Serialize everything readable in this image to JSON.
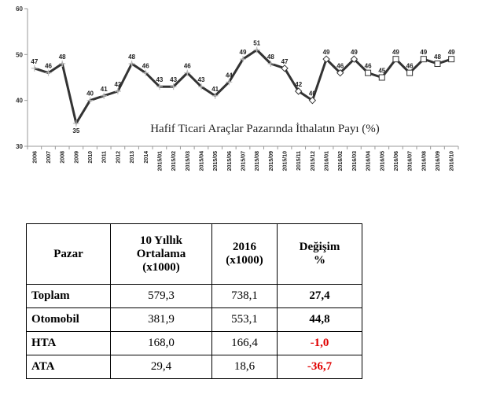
{
  "chart_data": {
    "type": "line",
    "title": "Hafif Ticari Araçlar Pazarında İthalatın Payı (%)",
    "xlabel": "",
    "ylabel": "",
    "ylim": [
      30,
      60
    ],
    "yticks": [
      30,
      40,
      50,
      60
    ],
    "grid": false,
    "categories": [
      "2006",
      "2007",
      "2008",
      "2009",
      "2010",
      "2011",
      "2012",
      "2013",
      "2014",
      "2015/01",
      "2015/02",
      "2015/03",
      "2015/04",
      "2015/05",
      "2015/06",
      "2015/07",
      "2015/08",
      "2015/09",
      "2015/10",
      "2015/11",
      "2015/12",
      "2016/01",
      "2016/02",
      "2016/03",
      "2016/04",
      "2016/05",
      "2016/06",
      "2016/07",
      "2016/08",
      "2016/09",
      "2016/10"
    ],
    "values": [
      47,
      46,
      48,
      35,
      40,
      41,
      42,
      48,
      46,
      43,
      43,
      46,
      43,
      41,
      44,
      49,
      51,
      48,
      47,
      42,
      40,
      49,
      46,
      49,
      46,
      45,
      49,
      46,
      49,
      48,
      49
    ],
    "labels": [
      "47",
      "46",
      "48",
      "35",
      "40",
      "41",
      "42",
      "48",
      "46",
      "43",
      "43",
      "46",
      "43",
      "41",
      "44",
      "49",
      "51",
      "48",
      "47",
      "42",
      "40",
      "49",
      "46",
      "49",
      "46",
      "45",
      "49",
      "46",
      "49",
      "48",
      "49"
    ],
    "series_color": "#333333"
  },
  "table": {
    "headers": [
      [
        "Pazar"
      ],
      [
        "10 Yıllık",
        "Ortalama",
        "(x1000)"
      ],
      [
        "2016",
        "(x1000)"
      ],
      [
        "Değişim",
        "%"
      ]
    ],
    "rows": [
      {
        "name": "Toplam",
        "avg": "579,3",
        "y2016": "738,1",
        "change": "27,4",
        "change_color": "#000000"
      },
      {
        "name": "Otomobil",
        "avg": "381,9",
        "y2016": "553,1",
        "change": "44,8",
        "change_color": "#000000"
      },
      {
        "name": "HTA",
        "avg": "168,0",
        "y2016": "166,4",
        "change": "-1,0",
        "change_color": "#e00000"
      },
      {
        "name": "ATA",
        "avg": "29,4",
        "y2016": "18,6",
        "change": "-36,7",
        "change_color": "#e00000"
      }
    ]
  }
}
